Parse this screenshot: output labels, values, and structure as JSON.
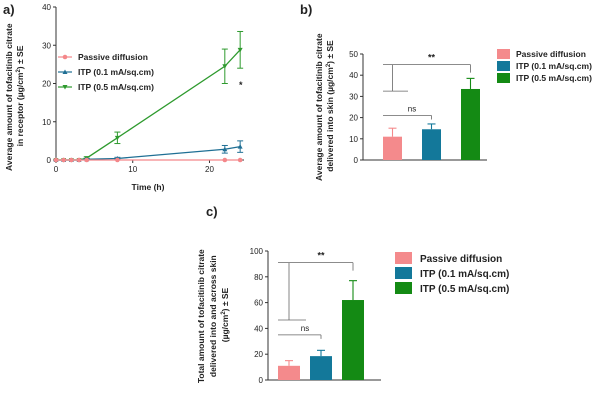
{
  "colors": {
    "passive": "#f4878a",
    "itp01": "#1f6f94",
    "itp05": "#2e9a2e",
    "axis": "#333333",
    "bar_passive": "#f48a8c",
    "bar_itp01": "#13789a",
    "bar_itp05": "#148a14",
    "bracket": "#666666"
  },
  "chart_data": [
    {
      "id": "a",
      "panel_label": "a)",
      "type": "line",
      "xlabel": "Time (h)",
      "ylabel_lines": [
        "Average amount of tofacitinib citrate",
        "in receptor (µg/cm",
        "2",
        ") ± SE"
      ],
      "xlim": [
        0,
        24.5
      ],
      "ylim": [
        0,
        40
      ],
      "xticks": [
        "0",
        "10",
        "20"
      ],
      "xtick_values": [
        0,
        10,
        20
      ],
      "yticks": [
        "0",
        "10",
        "20",
        "30",
        "40"
      ],
      "ytick_values": [
        0,
        10,
        20,
        30,
        40
      ],
      "series": [
        {
          "name": "Passive diffusion",
          "color_key": "passive",
          "marker": "circle",
          "x": [
            0,
            1,
            2,
            3,
            4,
            8,
            22,
            24
          ],
          "y": [
            0,
            0,
            0,
            0,
            0,
            0,
            0,
            0
          ],
          "err": [
            0,
            0,
            0,
            0,
            0,
            0,
            0,
            0
          ]
        },
        {
          "name": "ITP (0.1 mA/sq.cm)",
          "color_key": "itp01",
          "marker": "triangle-up",
          "x": [
            0,
            1,
            2,
            3,
            4,
            8,
            22,
            24
          ],
          "y": [
            0,
            0,
            0,
            0,
            0.2,
            0.4,
            2.8,
            3.5
          ],
          "err": [
            0,
            0,
            0,
            0,
            0.2,
            0.3,
            1.0,
            1.5
          ]
        },
        {
          "name": "ITP (0.5 mA/sq.cm)",
          "color_key": "itp05",
          "marker": "triangle-down",
          "x": [
            0,
            1,
            2,
            3,
            4,
            8,
            22,
            24
          ],
          "y": [
            0,
            0,
            0,
            0,
            0.5,
            5.8,
            24.5,
            28.8
          ],
          "err": [
            0,
            0,
            0,
            0,
            0.3,
            1.5,
            4.5,
            4.8
          ]
        }
      ],
      "annotation": "*"
    },
    {
      "id": "b",
      "panel_label": "b)",
      "type": "bar",
      "ylabel_lines": [
        "Average amount of tofacitinib citrate",
        "delivered into skin (µg/cm",
        "2",
        ") ± SE"
      ],
      "categories": [
        "Passive diffusion",
        "ITP (0.1 mA/sq.cm)",
        "ITP (0.5 mA/sq.cm)"
      ],
      "values": [
        11.0,
        14.5,
        33.5
      ],
      "errors": [
        4.0,
        2.5,
        5.0
      ],
      "color_keys": [
        "bar_passive",
        "bar_itp01",
        "bar_itp05"
      ],
      "ylim": [
        0,
        50
      ],
      "yticks": [
        "0",
        "10",
        "20",
        "30",
        "40",
        "50"
      ],
      "ytick_values": [
        0,
        10,
        20,
        30,
        40,
        50
      ],
      "comparisons": [
        {
          "label": "ns",
          "from": 0,
          "to": 1,
          "level": 21
        },
        {
          "label": "**",
          "from": 0,
          "to": 2,
          "level": 45,
          "stub": 32.5
        }
      ]
    },
    {
      "id": "c",
      "panel_label": "c)",
      "type": "bar",
      "ylabel_lines": [
        "Total amount of tofacitinib citrate",
        "delivered into and across skin",
        "(µg/cm",
        "2",
        ") ± SE"
      ],
      "categories": [
        "Passive diffusion",
        "ITP (0.1 mA/sq.cm)",
        "ITP (0.5 mA/sq.cm)"
      ],
      "values": [
        11.0,
        18.5,
        62.0
      ],
      "errors": [
        4.0,
        4.5,
        15.0
      ],
      "color_keys": [
        "bar_passive",
        "bar_itp01",
        "bar_itp05"
      ],
      "ylim": [
        0,
        100
      ],
      "yticks": [
        "0",
        "20",
        "40",
        "60",
        "80",
        "100"
      ],
      "ytick_values": [
        0,
        20,
        40,
        60,
        80,
        100
      ],
      "comparisons": [
        {
          "label": "ns",
          "from": 0,
          "to": 1,
          "level": 35
        },
        {
          "label": "**",
          "from": 0,
          "to": 2,
          "level": 91,
          "stub": 46.5
        }
      ]
    }
  ]
}
